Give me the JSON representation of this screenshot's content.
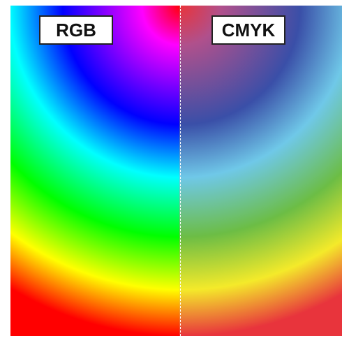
{
  "panels": {
    "left": {
      "label": "RGB",
      "stops": [
        "#ff0000",
        "#ff00ff",
        "#0000ff",
        "#00ffff",
        "#00ff00",
        "#ffff00",
        "#ff0000"
      ]
    },
    "right": {
      "label": "CMYK",
      "stops": [
        "#e8343c",
        "#b0508c",
        "#3a4fa8",
        "#6fc8e8",
        "#6cbd45",
        "#f4ea2a",
        "#e8343c"
      ]
    }
  },
  "divider_color": "#ffffff"
}
